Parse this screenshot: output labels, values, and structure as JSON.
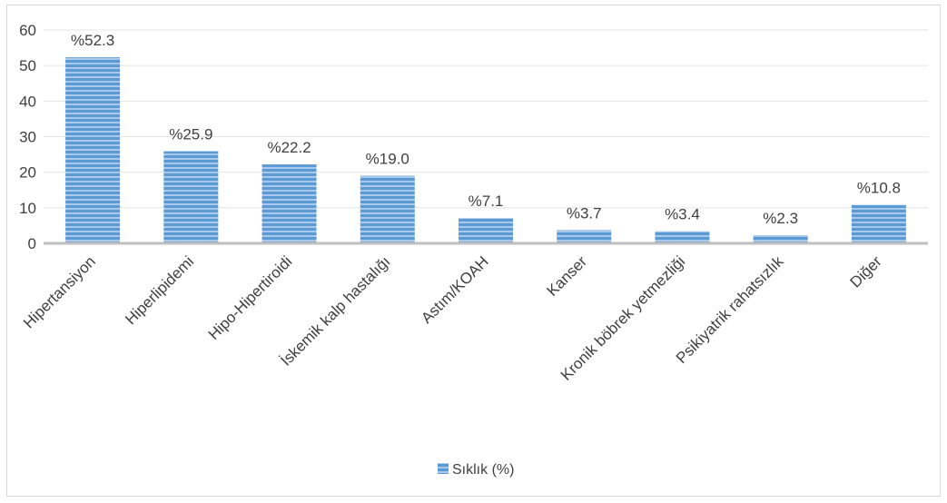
{
  "chart_data": {
    "type": "bar",
    "categories": [
      "Hipertansiyon",
      "Hiperlipidemi",
      "Hipo-Hipertiroidi",
      "İskemik kalp hastalığı",
      "Astım/KOAH",
      "Kanser",
      "Kronik böbrek yetmezliği",
      "Psikiyatrik rahatsızlık",
      "Diğer"
    ],
    "series": [
      {
        "name": "Sıklık (%)",
        "values": [
          52.3,
          25.9,
          22.2,
          19.0,
          7.1,
          3.7,
          3.4,
          2.3,
          10.8
        ]
      }
    ],
    "data_labels": [
      "%52.3",
      "%25.9",
      "%22.2",
      "%19.0",
      "%7.1",
      "%3.7",
      "%3.4",
      "%2.3",
      "%10.8"
    ],
    "y_ticks": [
      "0",
      "10",
      "20",
      "30",
      "40",
      "50",
      "60"
    ],
    "ylim": [
      0,
      60
    ],
    "grid": true,
    "legend_position": "bottom",
    "title": "",
    "xlabel": "",
    "ylabel": "",
    "colors": {
      "bar_fill": "#5b9bd5",
      "bar_stripe": "#ffffff",
      "gridline": "#e4e4e4",
      "axis": "#bfbfbf",
      "text": "#404040"
    }
  }
}
